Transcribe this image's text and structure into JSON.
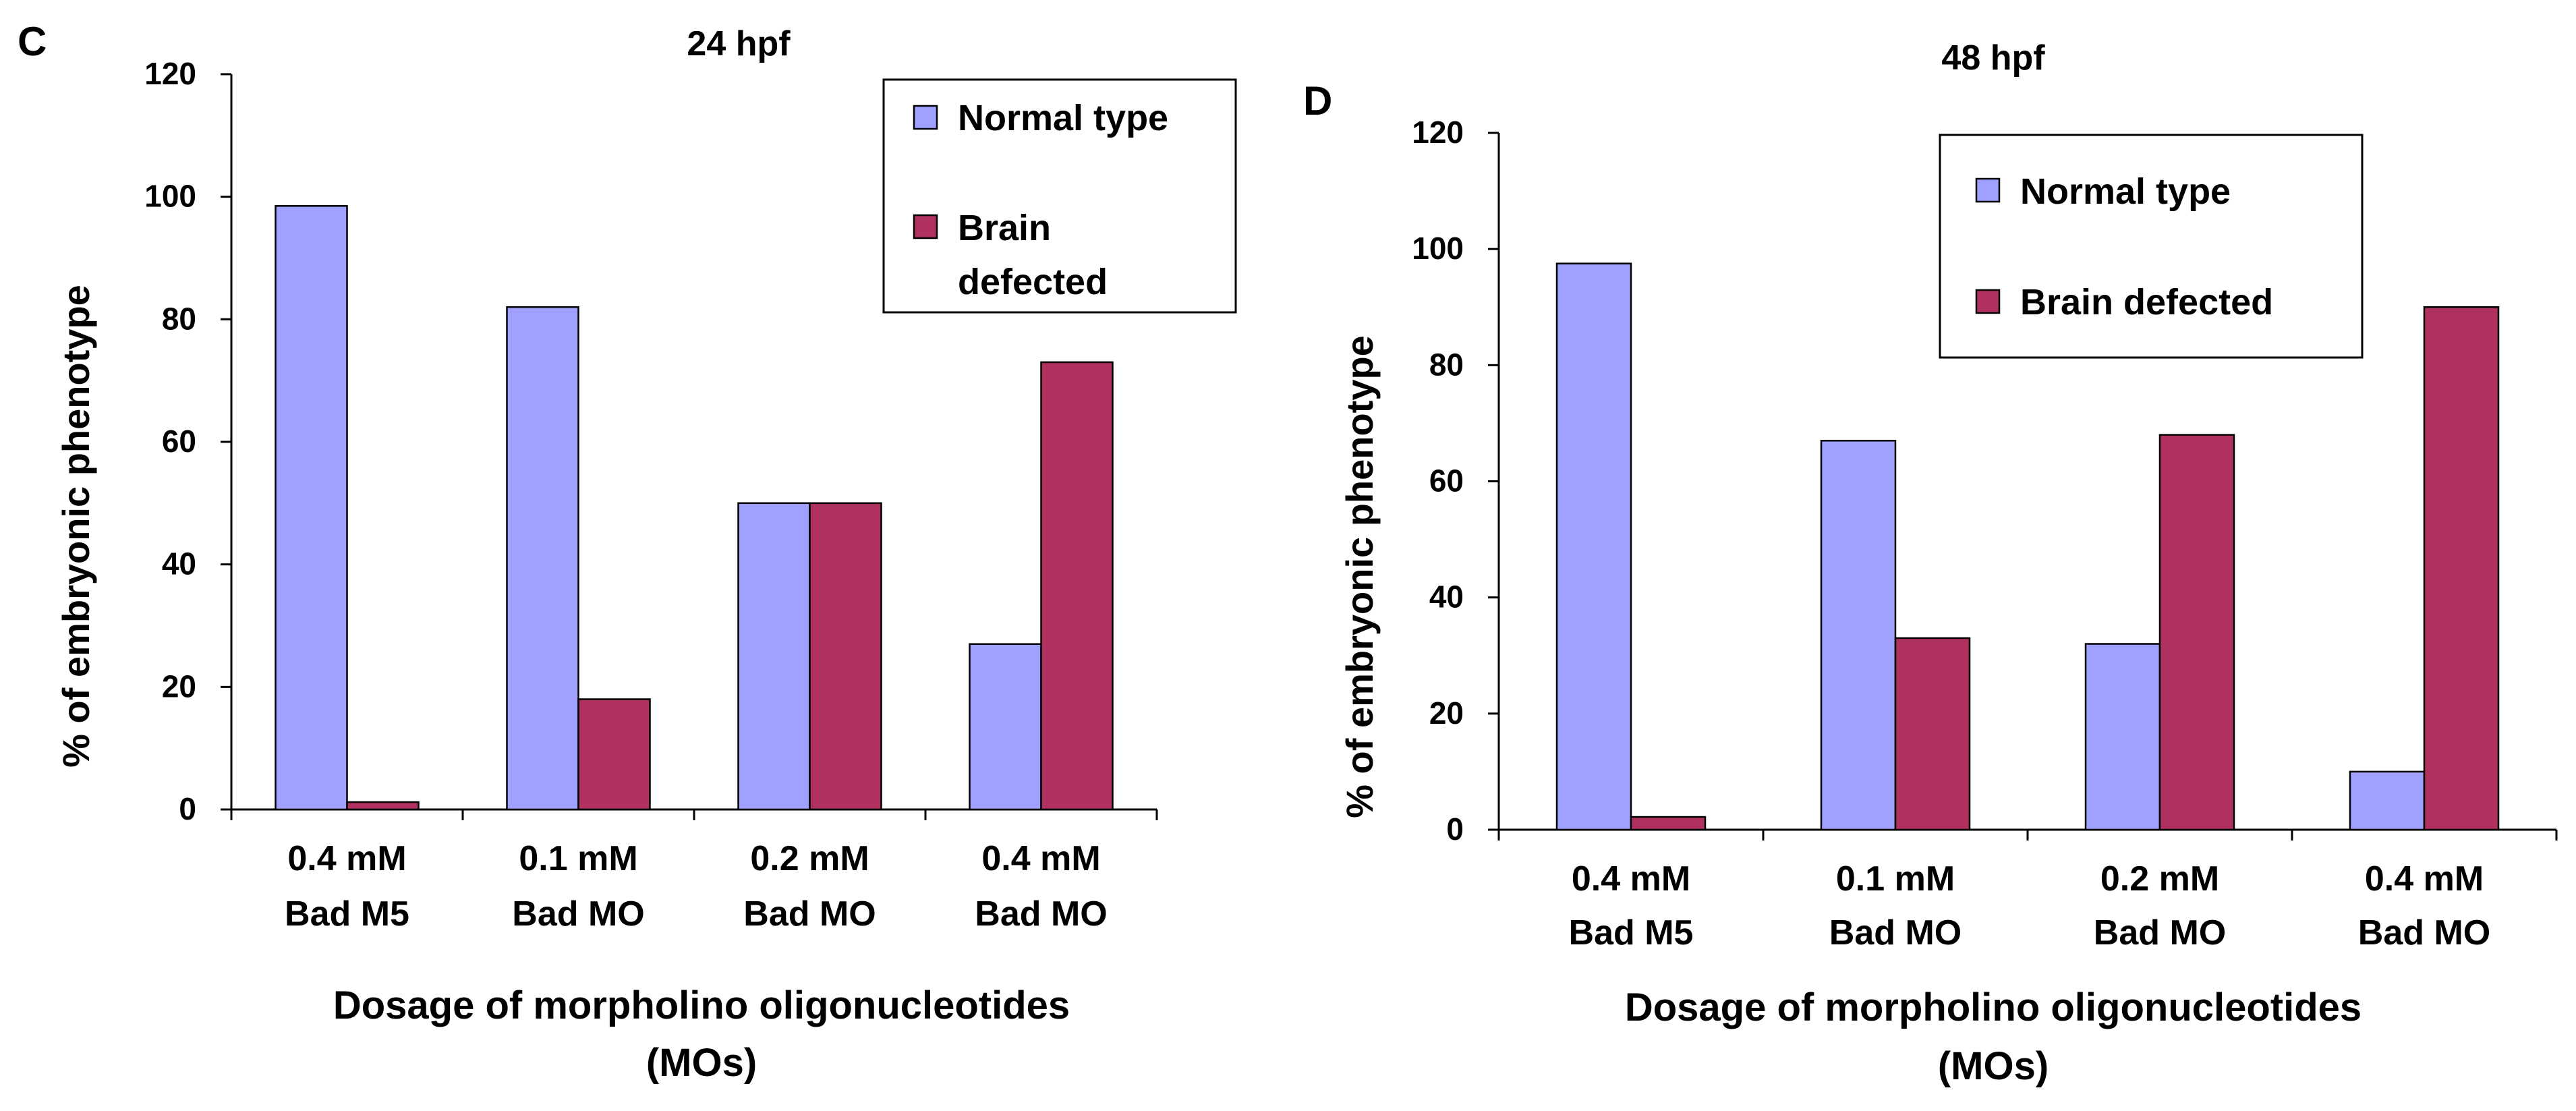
{
  "panels": [
    {
      "letter": "C",
      "title": "24 hpf",
      "ylabel": "% of embryonic phenotype",
      "xlabel_line1": "Dosage of morpholino  oligonucleotides",
      "xlabel_line2": "(MOs)",
      "legend": [
        "Normal type",
        "Brain defected"
      ]
    },
    {
      "letter": "D",
      "title": "48 hpf",
      "ylabel": "% of embryonic phenotype",
      "xlabel_line1": "Dosage of morpholino  oligonucleotides",
      "xlabel_line2": "(MOs)",
      "legend": [
        "Normal type",
        "Brain defected"
      ]
    }
  ],
  "chart_data": [
    {
      "type": "bar",
      "title": "24 hpf",
      "categories": [
        [
          "0.4 mM",
          "Bad M5"
        ],
        [
          "0.1 mM",
          "Bad MO"
        ],
        [
          "0.2 mM",
          "Bad MO"
        ],
        [
          "0.4 mM",
          "Bad MO"
        ]
      ],
      "series": [
        {
          "name": "Normal type",
          "values": [
            98.5,
            82,
            50,
            27
          ],
          "color": "#a0a0ff"
        },
        {
          "name": "Brain defected",
          "values": [
            1.2,
            18,
            50,
            73
          ],
          "color": "#b03060"
        }
      ],
      "ylim": [
        0,
        120
      ],
      "yticks": [
        0,
        20,
        40,
        60,
        80,
        100,
        120
      ],
      "xlabel": "Dosage of morpholino  oligonucleotides (MOs)",
      "ylabel": "% of embryonic phenotype",
      "legend_position": "top-right",
      "grid": false
    },
    {
      "type": "bar",
      "title": "48 hpf",
      "categories": [
        [
          "0.4 mM",
          "Bad M5"
        ],
        [
          "0.1 mM",
          "Bad MO"
        ],
        [
          "0.2 mM",
          "Bad MO"
        ],
        [
          "0.4 mM",
          "Bad MO"
        ]
      ],
      "series": [
        {
          "name": "Normal type",
          "values": [
            97.5,
            67,
            32,
            10
          ],
          "color": "#a0a0ff"
        },
        {
          "name": "Brain defected",
          "values": [
            2.2,
            33,
            68,
            90
          ],
          "color": "#b03060"
        }
      ],
      "ylim": [
        0,
        120
      ],
      "yticks": [
        0,
        20,
        40,
        60,
        80,
        100,
        120
      ],
      "xlabel": "Dosage of morpholino  oligonucleotides (MOs)",
      "ylabel": "% of embryonic phenotype",
      "legend_position": "top-right",
      "grid": false
    }
  ]
}
